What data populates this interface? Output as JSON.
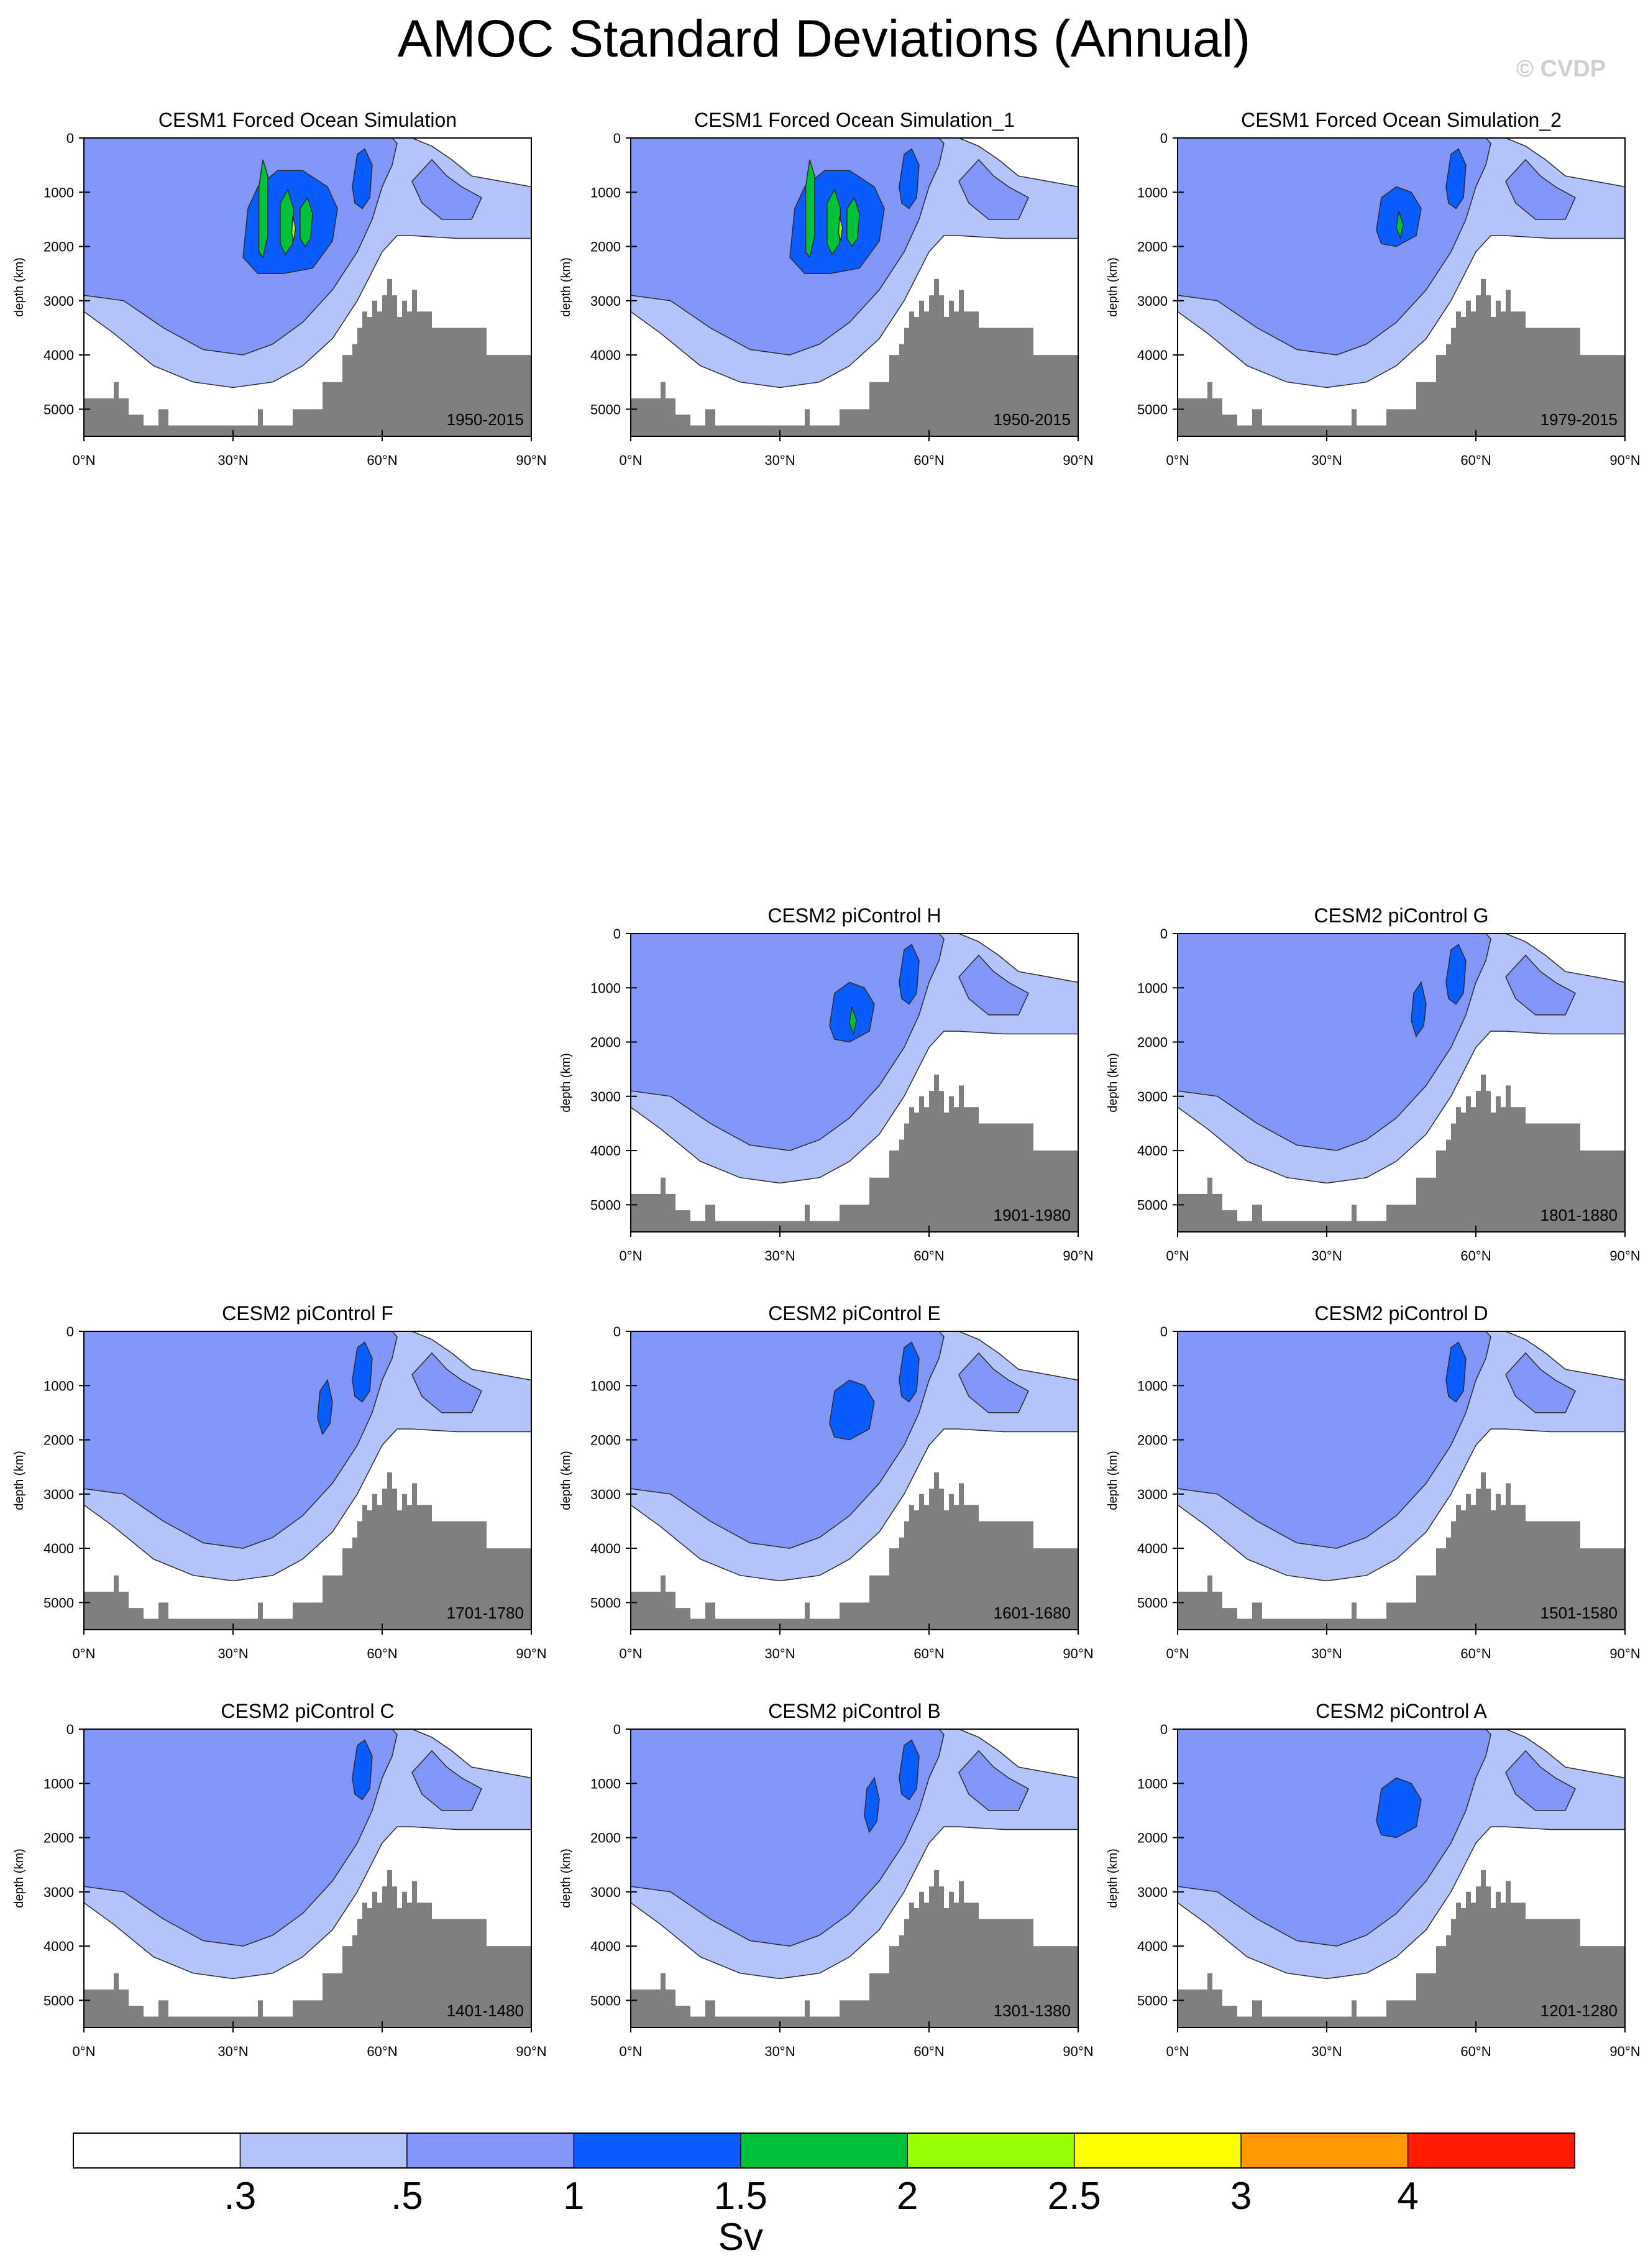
{
  "title": "AMOC Standard Deviations (Annual)",
  "watermark": "© CVDP",
  "chart_data": {
    "type": "heatmap",
    "variable": "AMOC standard deviation",
    "units": "Sv",
    "colorbar": {
      "levels": [
        ".3",
        ".5",
        "1",
        "1.5",
        "2",
        "2.5",
        "3",
        "4"
      ],
      "level_values": [
        0.3,
        0.5,
        1,
        1.5,
        2,
        2.5,
        3,
        4
      ],
      "colors": [
        "#ffffff",
        "#b4c3fa",
        "#8296f8",
        "#0a5cff",
        "#00c23a",
        "#96ff00",
        "#ffff00",
        "#ff9b00",
        "#ff1a00"
      ],
      "label": "Sv"
    },
    "x_axis": {
      "ticks": [
        0,
        30,
        60,
        90
      ],
      "tick_labels": [
        "0°N",
        "30°N",
        "60°N",
        "90°N"
      ],
      "range": [
        0,
        90
      ]
    },
    "y_axis": {
      "label": "depth (km)",
      "ticks": [
        0,
        1000,
        2000,
        3000,
        4000,
        5000
      ],
      "tick_labels": [
        "0",
        "1000",
        "2000",
        "3000",
        "4000",
        "5000"
      ],
      "range": [
        0,
        5500
      ],
      "inverted": true
    },
    "panels": [
      {
        "id": "cesm1-fos",
        "title": "CESM1 Forced Ocean Simulation",
        "period": "1950-2015",
        "row": 0,
        "col": 0,
        "max_level": 4
      },
      {
        "id": "cesm1-fos-1",
        "title": "CESM1 Forced Ocean Simulation_1",
        "period": "1950-2015",
        "row": 0,
        "col": 1,
        "max_level": 4
      },
      {
        "id": "cesm1-fos-2",
        "title": "CESM1 Forced Ocean Simulation_2",
        "period": "1979-2015",
        "row": 0,
        "col": 2,
        "max_level": 4
      },
      {
        "id": "cesm2-pic-h",
        "title": "CESM2 piControl H",
        "period": "1901-1980",
        "row": 1,
        "col": 1,
        "max_level": 4
      },
      {
        "id": "cesm2-pic-g",
        "title": "CESM2 piControl G",
        "period": "1801-1880",
        "row": 1,
        "col": 2,
        "max_level": 4
      },
      {
        "id": "cesm2-pic-f",
        "title": "CESM2 piControl F",
        "period": "1701-1780",
        "row": 2,
        "col": 0,
        "max_level": 3
      },
      {
        "id": "cesm2-pic-e",
        "title": "CESM2 piControl E",
        "period": "1601-1680",
        "row": 2,
        "col": 1,
        "max_level": 3
      },
      {
        "id": "cesm2-pic-d",
        "title": "CESM2 piControl D",
        "period": "1501-1580",
        "row": 2,
        "col": 2,
        "max_level": 3
      },
      {
        "id": "cesm2-pic-c",
        "title": "CESM2 piControl C",
        "period": "1401-1480",
        "row": 3,
        "col": 0,
        "max_level": 3
      },
      {
        "id": "cesm2-pic-b",
        "title": "CESM2 piControl B",
        "period": "1301-1380",
        "row": 3,
        "col": 1,
        "max_level": 3
      },
      {
        "id": "cesm2-pic-a",
        "title": "CESM2 piControl A",
        "period": "1201-1280",
        "row": 3,
        "col": 2,
        "max_level": 3
      }
    ],
    "bathymetry": {
      "color": "#7f7f7f",
      "lat": [
        0,
        4,
        6,
        7,
        9,
        12,
        14,
        15,
        17,
        20,
        24,
        28,
        31,
        33,
        35,
        36,
        38,
        40,
        42,
        45,
        48,
        50,
        52,
        54,
        55,
        56,
        57,
        58,
        59,
        60,
        61,
        62,
        63,
        64,
        65,
        66,
        67,
        68,
        70,
        72,
        75,
        78,
        81,
        84,
        87,
        90
      ],
      "depth": [
        4800,
        4800,
        4500,
        4800,
        5100,
        5300,
        5300,
        5000,
        5300,
        5300,
        5300,
        5300,
        5300,
        5300,
        5000,
        5300,
        5300,
        5300,
        5000,
        5000,
        4500,
        4500,
        4000,
        3800,
        3500,
        3200,
        3300,
        3000,
        3200,
        2900,
        2600,
        2900,
        3300,
        3000,
        3200,
        2800,
        3200,
        3200,
        3500,
        3500,
        3500,
        3500,
        4000,
        4000,
        4000,
        4000
      ]
    }
  }
}
